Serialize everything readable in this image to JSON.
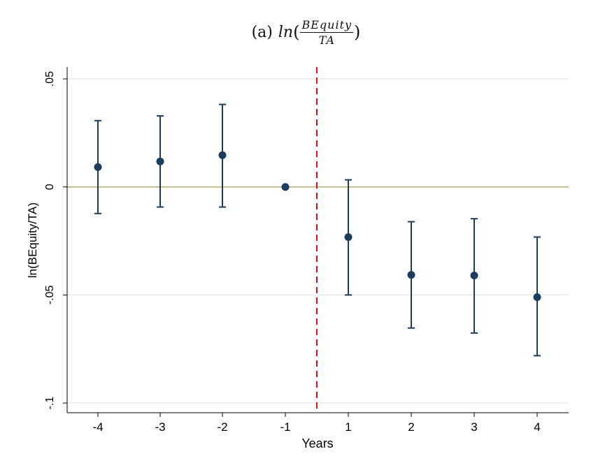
{
  "chart_data": {
    "type": "scatter",
    "title": {
      "prefix": "(a)",
      "func": "ln",
      "open": "(",
      "numerator": "BEquity",
      "denominator": "TA",
      "close": ")"
    },
    "xlabel": "Years",
    "ylabel": "ln(BEquity/TA)",
    "x": [
      -4,
      -3,
      -2,
      -1,
      1,
      2,
      3,
      4
    ],
    "x_tick_labels": [
      "-4",
      "-3",
      "-2",
      "-1",
      "1",
      "2",
      "3",
      "4"
    ],
    "y_ticks": [
      0.05,
      0,
      -0.05,
      -0.1
    ],
    "y_tick_labels": [
      ".05",
      "0",
      "-.05",
      "-.1"
    ],
    "ylim": [
      -0.1045,
      0.0555
    ],
    "estimates": [
      0.0092,
      0.0118,
      0.0147,
      0.0,
      -0.0232,
      -0.0407,
      -0.041,
      -0.051
    ],
    "ci_lower": [
      -0.0123,
      -0.0093,
      -0.0093,
      0.0,
      -0.05,
      -0.0653,
      -0.0676,
      -0.0781
    ],
    "ci_upper": [
      0.0307,
      0.0329,
      0.0382,
      0.0,
      0.0033,
      -0.0161,
      -0.0147,
      -0.0232
    ],
    "reference_line": {
      "y": 0,
      "color": "#b8b27a"
    },
    "event_line": {
      "between": [
        -1,
        1
      ],
      "color": "#d4161b",
      "style": "dashed"
    },
    "grid": true,
    "colors": {
      "marker": "#1a3c5e",
      "grid": "#e3e8ec",
      "axis": "#000000"
    }
  }
}
